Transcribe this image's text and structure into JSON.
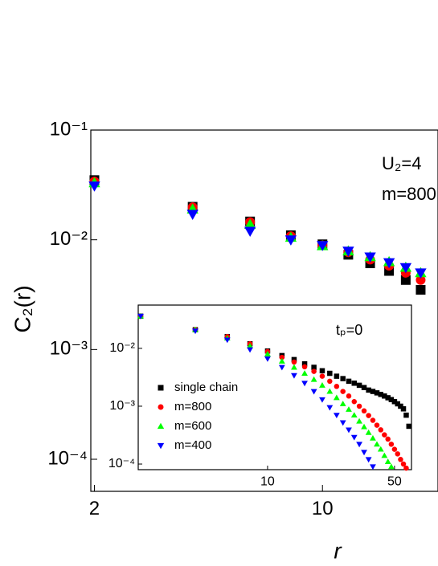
{
  "chart_data": [
    {
      "type": "scatter",
      "xlabel": "r",
      "ylabel": "C₂(r)",
      "log_x": true,
      "log_y": true,
      "xlim": [
        1.95,
        22.6
      ],
      "ylim": [
        5.1e-05,
        0.1
      ],
      "xticks": [
        2,
        10
      ],
      "yticks": [
        {
          "value": 0.1,
          "label": "10⁻¹"
        },
        {
          "value": 0.01,
          "label": "10⁻²"
        },
        {
          "value": 0.001,
          "label": "10⁻³"
        },
        {
          "value": 0.0001,
          "label": "10⁻⁴"
        }
      ],
      "annotations": [
        "U₂=4",
        "m=800"
      ],
      "series": [
        {
          "color": "#000000",
          "marker": "square",
          "x": [
            2,
            4,
            6,
            8,
            10,
            12,
            14,
            16,
            18,
            20
          ],
          "values": [
            0.035,
            0.02,
            0.0147,
            0.011,
            0.0091,
            0.0073,
            0.0061,
            0.0052,
            0.0043,
            0.0035
          ]
        },
        {
          "color": "#ff0000",
          "marker": "circle",
          "x": [
            2,
            4,
            6,
            8,
            10,
            12,
            14,
            16,
            18,
            20
          ],
          "values": [
            0.034,
            0.0198,
            0.0145,
            0.0108,
            0.0089,
            0.0077,
            0.0066,
            0.0058,
            0.005,
            0.0043
          ]
        },
        {
          "color": "#00ff00",
          "marker": "triangle-up",
          "x": [
            2,
            4,
            6,
            8,
            10,
            12,
            14,
            16,
            18,
            20
          ],
          "values": [
            0.033,
            0.019,
            0.0138,
            0.0105,
            0.0088,
            0.0079,
            0.007,
            0.0063,
            0.0056,
            0.005
          ]
        },
        {
          "color": "#0000ff",
          "marker": "triangle-down",
          "x": [
            2,
            4,
            6,
            8,
            10,
            12,
            14,
            16,
            18,
            20
          ],
          "values": [
            0.031,
            0.0171,
            0.012,
            0.01,
            0.0089,
            0.0079,
            0.007,
            0.0062,
            0.0056,
            0.005
          ]
        }
      ]
    },
    {
      "type": "scatter",
      "log_x": true,
      "log_y": true,
      "legend": "left",
      "xlim": [
        1.94,
        62
      ],
      "ylim": [
        8e-05,
        0.056
      ],
      "xticks": [
        10,
        50
      ],
      "yticks": [
        {
          "value": 0.01,
          "label": "10⁻²"
        },
        {
          "value": 0.001,
          "label": "10⁻³"
        },
        {
          "value": 0.0001,
          "label": "10⁻⁴"
        }
      ],
      "annotations": [
        "tₚ=0"
      ],
      "series": [
        {
          "name": "single chain",
          "color": "#000000",
          "marker": "square",
          "x": [
            2,
            4,
            6,
            8,
            10,
            12,
            14,
            16,
            18,
            20,
            22,
            24,
            26,
            28,
            30,
            32,
            34,
            36,
            38,
            40,
            42,
            44,
            46,
            48,
            50,
            52,
            54,
            56,
            58,
            60
          ],
          "values": [
            0.036,
            0.021,
            0.016,
            0.012,
            0.009,
            0.0075,
            0.0064,
            0.0054,
            0.0047,
            0.0041,
            0.0037,
            0.0033,
            0.003,
            0.0027,
            0.0025,
            0.0023,
            0.0021,
            0.0019,
            0.0018,
            0.0017,
            0.0016,
            0.0015,
            0.0014,
            0.0013,
            0.0012,
            0.0011,
            0.001,
            0.0009,
            0.0007,
            0.00045
          ]
        },
        {
          "name": "m=800",
          "color": "#ff0000",
          "marker": "circle",
          "x": [
            2,
            4,
            6,
            8,
            10,
            12,
            14,
            16,
            18,
            20,
            22,
            24,
            26,
            28,
            30,
            32,
            34,
            36,
            38,
            40,
            42,
            44,
            46,
            48,
            50,
            52,
            54,
            56,
            58
          ],
          "values": [
            0.036,
            0.021,
            0.016,
            0.012,
            0.0088,
            0.007,
            0.0058,
            0.0048,
            0.004,
            0.0033,
            0.0027,
            0.0022,
            0.0018,
            0.0015,
            0.0012,
            0.001,
            0.00083,
            0.00069,
            0.00057,
            0.00047,
            0.00039,
            0.00032,
            0.00027,
            0.00022,
            0.00018,
            0.00015,
            0.00012,
            0.0001,
            8.5e-05
          ]
        },
        {
          "name": "m=600",
          "color": "#00ff00",
          "marker": "triangle-up",
          "x": [
            2,
            4,
            6,
            8,
            10,
            12,
            14,
            16,
            18,
            20,
            22,
            24,
            26,
            28,
            30,
            32,
            34,
            36,
            38,
            40,
            42,
            44,
            46,
            48
          ],
          "values": [
            0.036,
            0.021,
            0.015,
            0.011,
            0.008,
            0.006,
            0.0047,
            0.0037,
            0.0029,
            0.0023,
            0.0018,
            0.0014,
            0.0011,
            0.00088,
            0.0007,
            0.00055,
            0.00044,
            0.00035,
            0.00028,
            0.00022,
            0.00018,
            0.00014,
            0.00011,
            9e-05
          ]
        },
        {
          "name": "m=400",
          "color": "#0000ff",
          "marker": "triangle-down",
          "x": [
            2,
            4,
            6,
            8,
            10,
            12,
            14,
            16,
            18,
            20,
            22,
            24,
            26,
            28,
            30,
            32,
            34,
            36,
            38
          ],
          "values": [
            0.036,
            0.02,
            0.014,
            0.0095,
            0.0066,
            0.0047,
            0.0034,
            0.0025,
            0.0018,
            0.0013,
            0.00095,
            0.0007,
            0.00052,
            0.00039,
            0.00029,
            0.00022,
            0.00016,
            0.00012,
            9e-05
          ]
        }
      ]
    }
  ]
}
